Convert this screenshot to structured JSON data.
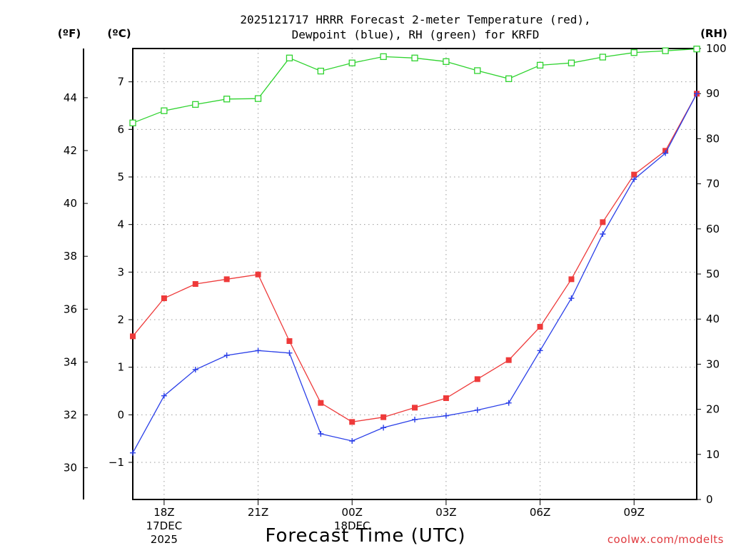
{
  "chart_data": {
    "type": "line",
    "title_lines": [
      "2025121717 HRRR Forecast 2-meter Temperature (red),",
      "Dewpoint (blue), RH (green) for KRFD"
    ],
    "xlabel": "Forecast Time (UTC)",
    "credit": "coolwx.com/modelts",
    "units": {
      "fahrenheit": "(ºF)",
      "celsius": "(ºC)",
      "rh": "(RH)"
    },
    "x_ticks": [
      {
        "hour": 1,
        "label": "18Z",
        "sub1": "17DEC",
        "sub2": "2025"
      },
      {
        "hour": 4,
        "label": "21Z",
        "sub1": "",
        "sub2": ""
      },
      {
        "hour": 7,
        "label": "00Z",
        "sub1": "18DEC",
        "sub2": ""
      },
      {
        "hour": 10,
        "label": "03Z",
        "sub1": "",
        "sub2": ""
      },
      {
        "hour": 13,
        "label": "06Z",
        "sub1": "",
        "sub2": ""
      },
      {
        "hour": 16,
        "label": "09Z",
        "sub1": "",
        "sub2": ""
      }
    ],
    "xlim": [
      0,
      18
    ],
    "celsius_axis": {
      "ylim": [
        -1.78,
        7.7
      ],
      "ticks": [
        "-1",
        "0",
        "1",
        "2",
        "3",
        "4",
        "5",
        "6",
        "7"
      ]
    },
    "fahrenheit_axis": {
      "ylim": [
        28.8,
        45.86
      ],
      "ticks": [
        "30",
        "32",
        "34",
        "36",
        "38",
        "40",
        "42",
        "44"
      ]
    },
    "rh_axis": {
      "ylim": [
        0,
        100
      ],
      "ticks": [
        "0",
        "10",
        "20",
        "30",
        "40",
        "50",
        "60",
        "70",
        "80",
        "90",
        "100"
      ]
    },
    "hours": [
      0,
      1,
      2,
      3,
      4,
      5,
      6,
      7,
      8,
      9,
      10,
      11,
      12,
      13,
      14,
      15,
      16,
      17,
      18
    ],
    "series": [
      {
        "name": "2-meter Temperature",
        "axis": "celsius",
        "color": "#ee3a3a",
        "marker": "filled-square",
        "values": [
          1.65,
          2.45,
          2.75,
          2.85,
          2.95,
          1.55,
          0.25,
          -0.15,
          -0.05,
          0.15,
          0.35,
          0.75,
          1.15,
          1.85,
          2.85,
          4.05,
          5.05,
          5.55,
          6.75
        ]
      },
      {
        "name": "Dewpoint",
        "axis": "celsius",
        "color": "#2a3fe8",
        "marker": "plus",
        "values": [
          -0.8,
          0.4,
          0.95,
          1.25,
          1.35,
          1.3,
          -0.4,
          -0.55,
          -0.27,
          -0.1,
          -0.02,
          0.1,
          0.25,
          1.35,
          2.45,
          3.8,
          4.95,
          5.5,
          6.75
        ]
      },
      {
        "name": "RH",
        "axis": "rh",
        "color": "#2fd32f",
        "marker": "open-square",
        "values": [
          83.5,
          86.2,
          87.6,
          88.8,
          88.9,
          97.9,
          95,
          96.8,
          98.2,
          97.9,
          97.1,
          95.1,
          93.3,
          96.3,
          96.8,
          98.1,
          99.1,
          99.5,
          99.9
        ]
      }
    ]
  }
}
